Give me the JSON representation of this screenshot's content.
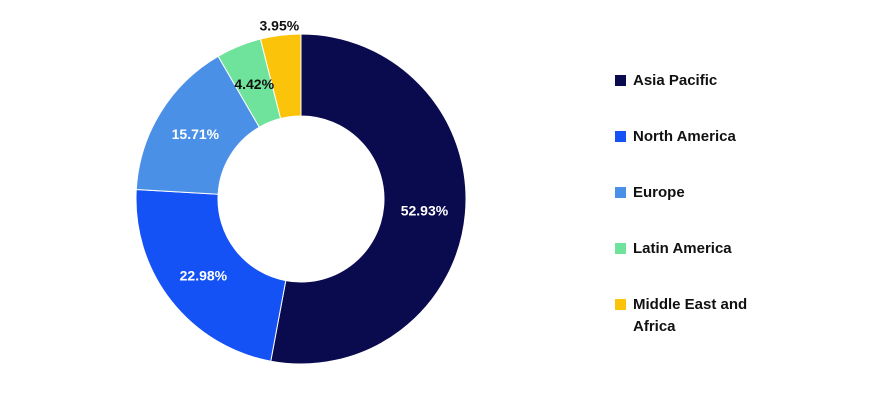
{
  "chart_data": {
    "type": "pie",
    "variant": "donut",
    "title": "",
    "categories": [
      "Asia Pacific",
      "North America",
      "Europe",
      "Latin America",
      "Middle East and Africa"
    ],
    "values": [
      52.93,
      22.98,
      15.71,
      4.42,
      3.95
    ],
    "labels": [
      "52.93%",
      "22.98%",
      "15.71%",
      "4.42%",
      "3.95%"
    ],
    "colors": [
      "#0a0a4f",
      "#1552f5",
      "#4a90e6",
      "#6fe39b",
      "#fcc30b"
    ],
    "label_colors": [
      "#ffffff",
      "#ffffff",
      "#ffffff",
      "#111111",
      "#111111"
    ],
    "legend_position": "right"
  },
  "legend": {
    "items": [
      {
        "label": "Asia Pacific",
        "color": "#0a0a4f"
      },
      {
        "label": "North America",
        "color": "#1552f5"
      },
      {
        "label": "Europe",
        "color": "#4a90e6"
      },
      {
        "label": "Latin America",
        "color": "#6fe39b"
      },
      {
        "label": "Middle East and Africa",
        "color": "#fcc30b"
      }
    ]
  }
}
